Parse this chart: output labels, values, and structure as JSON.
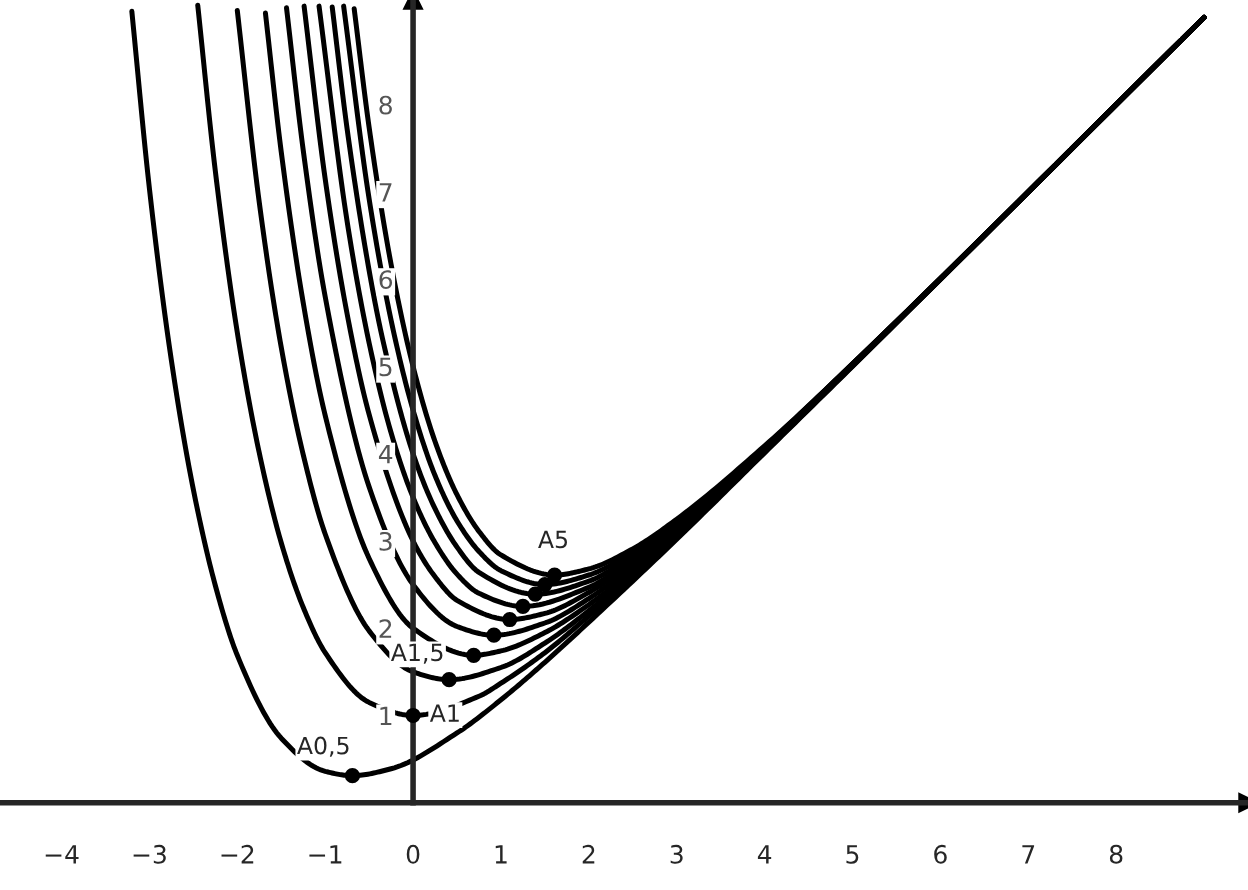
{
  "chart_data": {
    "type": "line",
    "xlim": [
      -4.7,
      9.5
    ],
    "ylim": [
      -1.0,
      9.2
    ],
    "xticks": [
      {
        "value": -4,
        "label": "−4"
      },
      {
        "value": -3,
        "label": "−3"
      },
      {
        "value": -2,
        "label": "−2"
      },
      {
        "value": -1,
        "label": "−1"
      },
      0,
      1,
      2,
      3,
      4,
      5,
      6,
      7,
      8
    ],
    "yticks": [
      1,
      2,
      3,
      4,
      5,
      6,
      7,
      8
    ],
    "grid": false,
    "marker": "none",
    "line_style": "solid",
    "series": [
      {
        "color": "#000000",
        "x": [
          -3.2,
          -3,
          -2.75,
          -2.5,
          -2.25,
          -2,
          -1.5,
          -1,
          -0.69,
          -0.25,
          0.5,
          1,
          1.5,
          2,
          3,
          4,
          5,
          9
        ],
        "values": [
          9.07,
          7.04,
          5.07,
          3.59,
          2.49,
          1.69,
          0.74,
          0.36,
          0.31,
          0.39,
          0.8,
          1.18,
          1.61,
          2.07,
          3.02,
          4.01,
          5.0,
          9.0
        ]
      },
      {
        "color": "#000000",
        "x": [
          -2.45,
          -2.25,
          -2,
          -1.75,
          -1.5,
          -1.25,
          -1,
          -0.5,
          0,
          0.75,
          1,
          1.5,
          2,
          2.5,
          3,
          4,
          5,
          9
        ],
        "values": [
          9.14,
          7.24,
          5.39,
          4.01,
          2.98,
          2.24,
          1.72,
          1.15,
          1.0,
          1.22,
          1.37,
          1.72,
          2.14,
          2.58,
          3.05,
          4.02,
          5.01,
          9.0
        ]
      },
      {
        "color": "#000000",
        "x": [
          -2,
          -1.75,
          -1.5,
          -1.25,
          -1,
          -0.5,
          0,
          0.41,
          1,
          1.5,
          2,
          2.5,
          3,
          4,
          5,
          9
        ],
        "values": [
          9.08,
          6.88,
          5.22,
          3.99,
          3.08,
          1.97,
          1.5,
          1.41,
          1.55,
          1.83,
          2.2,
          2.62,
          3.07,
          4.03,
          5.01,
          9.0
        ]
      },
      {
        "color": "#000000",
        "x": [
          -1.68,
          -1.5,
          -1.25,
          -1,
          -0.5,
          0,
          0.69,
          1,
          1.5,
          2,
          2.5,
          3,
          4,
          5,
          9
        ],
        "values": [
          9.05,
          7.46,
          5.73,
          4.44,
          2.8,
          2.0,
          1.69,
          1.74,
          1.95,
          2.27,
          2.66,
          3.1,
          4.04,
          5.01,
          9.0
        ]
      },
      {
        "color": "#000000",
        "x": [
          -1.44,
          -1.25,
          -1,
          -0.5,
          0,
          0.5,
          0.92,
          1.5,
          2,
          2.5,
          3,
          4,
          5,
          9
        ],
        "values": [
          9.11,
          7.48,
          5.8,
          3.62,
          2.5,
          2.02,
          1.92,
          2.06,
          2.34,
          2.71,
          3.12,
          4.05,
          5.02,
          9.0
        ]
      },
      {
        "color": "#000000",
        "x": [
          -1.24,
          -1,
          -0.75,
          -0.5,
          0,
          0.25,
          0.5,
          1.1,
          1.5,
          2,
          2.5,
          3,
          4,
          5,
          9
        ],
        "values": [
          9.13,
          7.15,
          5.6,
          4.45,
          3.0,
          2.59,
          2.32,
          2.1,
          2.17,
          2.41,
          2.75,
          3.15,
          4.05,
          5.02,
          9.0
        ]
      },
      {
        "color": "#000000",
        "x": [
          -1.07,
          -0.75,
          -0.5,
          -0.25,
          0,
          0.25,
          0.5,
          0.75,
          1.25,
          2,
          2.5,
          3,
          4,
          5,
          9
        ],
        "values": [
          9.13,
          6.66,
          5.27,
          4.24,
          3.5,
          2.98,
          2.62,
          2.4,
          2.25,
          2.47,
          2.79,
          3.17,
          4.06,
          5.02,
          9.0
        ]
      },
      {
        "color": "#000000",
        "x": [
          -0.92,
          -0.75,
          -0.5,
          -0.35,
          0,
          0.25,
          0.5,
          0.75,
          1.39,
          2,
          2.5,
          3,
          4,
          5,
          9
        ],
        "values": [
          9.12,
          7.72,
          6.1,
          5.33,
          4.0,
          3.37,
          2.93,
          2.64,
          2.39,
          2.54,
          2.83,
          3.2,
          4.07,
          5.03,
          9.0
        ]
      },
      {
        "color": "#000000",
        "x": [
          -0.79,
          -0.5,
          -0.25,
          0,
          0.25,
          0.5,
          0.75,
          1,
          1.5,
          2,
          2.5,
          3,
          4,
          5,
          9
        ],
        "values": [
          9.13,
          6.92,
          5.53,
          4.5,
          3.75,
          3.23,
          2.88,
          2.66,
          2.5,
          2.61,
          2.87,
          3.22,
          4.08,
          5.03,
          9.0
        ]
      },
      {
        "color": "#000000",
        "x": [
          -0.67,
          -0.5,
          -0.25,
          0,
          0.25,
          0.5,
          0.75,
          1,
          1.61,
          2,
          2.5,
          3,
          4,
          5,
          9
        ],
        "values": [
          9.1,
          7.74,
          6.17,
          5.0,
          4.14,
          3.53,
          3.11,
          2.84,
          2.61,
          2.68,
          2.91,
          3.25,
          4.09,
          5.03,
          9.0
        ]
      },
      {
        "type": "scatter",
        "color": "#000000",
        "marker": "circle",
        "x": [
          -0.69,
          0,
          0.41,
          0.69,
          0.92,
          1.1,
          1.25,
          1.39,
          1.5,
          1.61
        ],
        "values": [
          0.31,
          1.0,
          1.41,
          1.69,
          1.92,
          2.1,
          2.25,
          2.39,
          2.5,
          2.61
        ]
      }
    ],
    "annotations": [
      {
        "text": "A0,5",
        "x": -0.69,
        "y": 0.31
      },
      {
        "text": "A1",
        "x": 0,
        "y": 1.0
      },
      {
        "text": "A1,5",
        "x": 0.41,
        "y": 1.41
      },
      {
        "text": "A5",
        "x": 1.61,
        "y": 2.61
      }
    ]
  }
}
